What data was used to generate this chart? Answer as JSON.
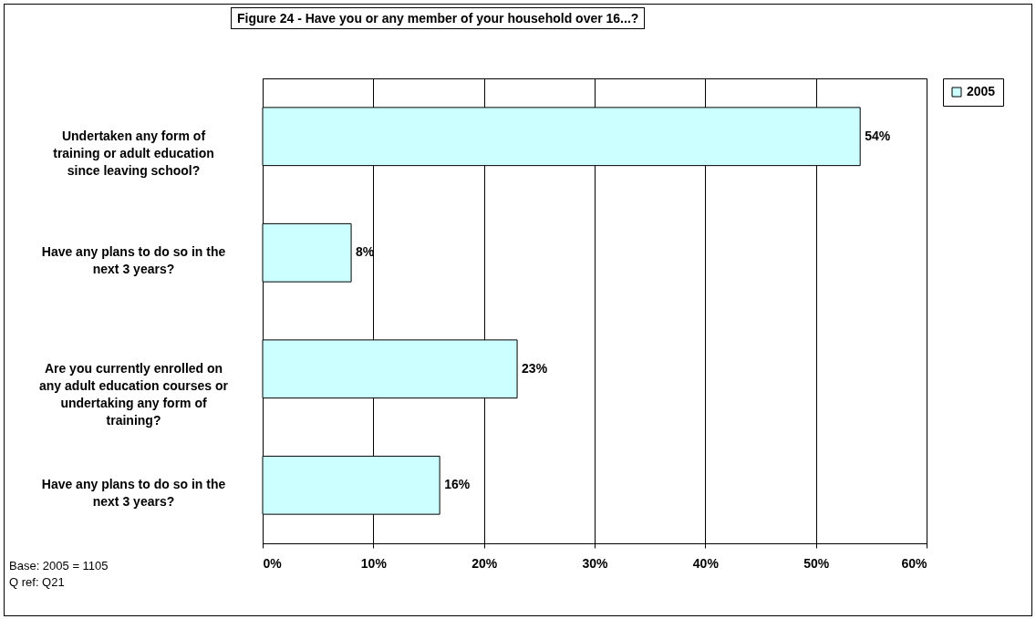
{
  "chart_data": {
    "type": "bar",
    "orientation": "horizontal",
    "title": "Figure 24 - Have you or any member of your household over 16...?",
    "categories": [
      "Undertaken any form of training or adult education since leaving school?",
      "Have any plans to do so in the next 3 years?",
      "Are you currently enrolled on any adult education courses or undertaking any form of training?",
      "Have any plans to do so in the next 3 years?"
    ],
    "series": [
      {
        "name": "2005",
        "color": "#ccffff",
        "values": [
          54,
          8,
          23,
          16
        ],
        "value_labels": [
          "54%",
          "8%",
          "23%",
          "16%"
        ]
      }
    ],
    "xlim": [
      0,
      60
    ],
    "xticks": [
      {
        "value": 0,
        "label": "0%"
      },
      {
        "value": 10,
        "label": "10%"
      },
      {
        "value": 20,
        "label": "20%"
      },
      {
        "value": 30,
        "label": "30%"
      },
      {
        "value": 40,
        "label": "40%"
      },
      {
        "value": 50,
        "label": "50%"
      },
      {
        "value": 60,
        "label": "60%"
      }
    ],
    "grid": "x",
    "legend": "right",
    "annotations": [
      "Base: 2005 = 1105",
      "Q ref: Q21"
    ]
  }
}
